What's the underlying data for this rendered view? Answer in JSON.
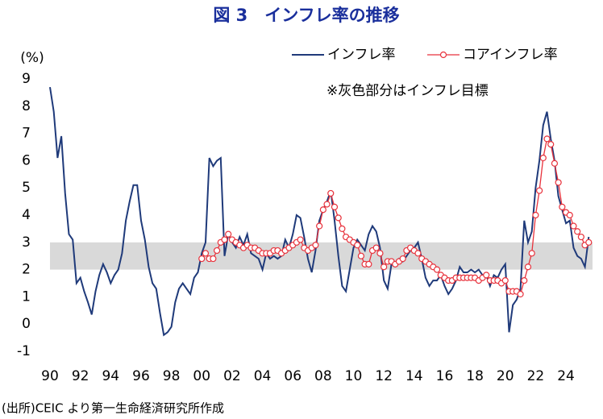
{
  "chart_data": {
    "type": "line",
    "title": "図 3　インフレ率の推移",
    "y_unit": "(%)",
    "annotation": "※灰色部分はインフレ目標",
    "source": "(出所)CEIC より第一生命経済研究所作成",
    "target_band": [
      2,
      3
    ],
    "band_color": "#d9d9d9",
    "xlim": [
      1990,
      2025.75
    ],
    "ylim": [
      -1,
      9
    ],
    "yticks": [
      -1,
      0,
      1,
      2,
      3,
      4,
      5,
      6,
      7,
      8,
      9
    ],
    "xticks": [
      {
        "value": 1990,
        "label": "90"
      },
      {
        "value": 1992,
        "label": "92"
      },
      {
        "value": 1994,
        "label": "94"
      },
      {
        "value": 1996,
        "label": "96"
      },
      {
        "value": 1998,
        "label": "98"
      },
      {
        "value": 2000,
        "label": "00"
      },
      {
        "value": 2002,
        "label": "02"
      },
      {
        "value": 2004,
        "label": "04"
      },
      {
        "value": 2006,
        "label": "06"
      },
      {
        "value": 2008,
        "label": "08"
      },
      {
        "value": 2010,
        "label": "10"
      },
      {
        "value": 2012,
        "label": "12"
      },
      {
        "value": 2014,
        "label": "14"
      },
      {
        "value": 2016,
        "label": "16"
      },
      {
        "value": 2018,
        "label": "18"
      },
      {
        "value": 2020,
        "label": "20"
      },
      {
        "value": 2022,
        "label": "22"
      },
      {
        "value": 2024,
        "label": "24"
      }
    ],
    "series": [
      {
        "name": "インフレ率",
        "color": "#1f3a7a",
        "markers": false,
        "x": [
          1990,
          1990.25,
          1990.5,
          1990.75,
          1991,
          1991.25,
          1991.5,
          1991.75,
          1992,
          1992.25,
          1992.5,
          1992.75,
          1993,
          1993.25,
          1993.5,
          1993.75,
          1994,
          1994.25,
          1994.5,
          1994.75,
          1995,
          1995.25,
          1995.5,
          1995.75,
          1996,
          1996.25,
          1996.5,
          1996.75,
          1997,
          1997.25,
          1997.5,
          1997.75,
          1998,
          1998.25,
          1998.5,
          1998.75,
          1999,
          1999.25,
          1999.5,
          1999.75,
          2000,
          2000.25,
          2000.5,
          2000.75,
          2001,
          2001.25,
          2001.5,
          2001.75,
          2002,
          2002.25,
          2002.5,
          2002.75,
          2003,
          2003.25,
          2003.5,
          2003.75,
          2004,
          2004.25,
          2004.5,
          2004.75,
          2005,
          2005.25,
          2005.5,
          2005.75,
          2006,
          2006.25,
          2006.5,
          2006.75,
          2007,
          2007.25,
          2007.5,
          2007.75,
          2008,
          2008.25,
          2008.5,
          2008.75,
          2009,
          2009.25,
          2009.5,
          2009.75,
          2010,
          2010.25,
          2010.5,
          2010.75,
          2011,
          2011.25,
          2011.5,
          2011.75,
          2012,
          2012.25,
          2012.5,
          2012.75,
          2013,
          2013.25,
          2013.5,
          2013.75,
          2014,
          2014.25,
          2014.5,
          2014.75,
          2015,
          2015.25,
          2015.5,
          2015.75,
          2016,
          2016.25,
          2016.5,
          2016.75,
          2017,
          2017.25,
          2017.5,
          2017.75,
          2018,
          2018.25,
          2018.5,
          2018.75,
          2019,
          2019.25,
          2019.5,
          2019.75,
          2020,
          2020.25,
          2020.5,
          2020.75,
          2021,
          2021.25,
          2021.5,
          2021.75,
          2022,
          2022.25,
          2022.5,
          2022.75,
          2023,
          2023.25,
          2023.5,
          2023.75,
          2024,
          2024.25,
          2024.5,
          2024.75,
          2025,
          2025.25,
          2025.5
        ],
        "values": [
          8.7,
          7.8,
          6.1,
          6.9,
          4.8,
          3.3,
          3.1,
          1.5,
          1.7,
          1.2,
          0.8,
          0.35,
          1.2,
          1.8,
          2.2,
          1.9,
          1.5,
          1.8,
          2.0,
          2.6,
          3.8,
          4.5,
          5.1,
          5.1,
          3.8,
          3.1,
          2.1,
          1.5,
          1.3,
          0.4,
          -0.4,
          -0.3,
          -0.1,
          0.8,
          1.3,
          1.5,
          1.3,
          1.1,
          1.7,
          1.9,
          2.6,
          3.0,
          6.1,
          5.8,
          6.0,
          6.1,
          2.5,
          3.3,
          3.0,
          2.8,
          3.2,
          2.9,
          3.3,
          2.6,
          2.5,
          2.4,
          2.0,
          2.6,
          2.4,
          2.5,
          2.4,
          2.5,
          3.1,
          2.8,
          3.3,
          4.0,
          3.9,
          3.2,
          2.4,
          1.9,
          2.7,
          3.8,
          4.2,
          4.5,
          4.9,
          3.8,
          2.5,
          1.4,
          1.2,
          2.0,
          2.8,
          3.1,
          2.9,
          2.7,
          3.3,
          3.6,
          3.4,
          2.8,
          1.6,
          1.3,
          2.2,
          2.2,
          2.4,
          2.3,
          2.5,
          2.7,
          2.8,
          3.0,
          2.4,
          1.7,
          1.4,
          1.6,
          1.6,
          1.8,
          1.4,
          1.1,
          1.3,
          1.6,
          2.1,
          1.9,
          1.9,
          2.0,
          1.9,
          2.0,
          1.8,
          1.8,
          1.4,
          1.8,
          1.7,
          2.0,
          2.2,
          -0.3,
          0.7,
          0.9,
          1.3,
          3.8,
          3.0,
          3.4,
          5.0,
          6.0,
          7.3,
          7.8,
          6.8,
          6.0,
          4.7,
          4.2,
          3.7,
          3.8,
          2.8,
          2.5,
          2.4,
          2.1,
          3.2
        ]
      },
      {
        "name": "コアインフレ率",
        "color": "#e8323c",
        "markers": true,
        "x": [
          2000,
          2000.25,
          2000.5,
          2000.75,
          2001,
          2001.25,
          2001.5,
          2001.75,
          2002,
          2002.25,
          2002.5,
          2002.75,
          2003,
          2003.25,
          2003.5,
          2003.75,
          2004,
          2004.25,
          2004.5,
          2004.75,
          2005,
          2005.25,
          2005.5,
          2005.75,
          2006,
          2006.25,
          2006.5,
          2006.75,
          2007,
          2007.25,
          2007.5,
          2007.75,
          2008,
          2008.25,
          2008.5,
          2008.75,
          2009,
          2009.25,
          2009.5,
          2009.75,
          2010,
          2010.25,
          2010.5,
          2010.75,
          2011,
          2011.25,
          2011.5,
          2011.75,
          2012,
          2012.25,
          2012.5,
          2012.75,
          2013,
          2013.25,
          2013.5,
          2013.75,
          2014,
          2014.25,
          2014.5,
          2014.75,
          2015,
          2015.25,
          2015.5,
          2015.75,
          2016,
          2016.25,
          2016.5,
          2016.75,
          2017,
          2017.25,
          2017.5,
          2017.75,
          2018,
          2018.25,
          2018.5,
          2018.75,
          2019,
          2019.25,
          2019.5,
          2019.75,
          2020,
          2020.25,
          2020.5,
          2020.75,
          2021,
          2021.25,
          2021.5,
          2021.75,
          2022,
          2022.25,
          2022.5,
          2022.75,
          2023,
          2023.25,
          2023.5,
          2023.75,
          2024,
          2024.25,
          2024.5,
          2024.75,
          2025,
          2025.25,
          2025.5
        ],
        "values": [
          2.4,
          2.6,
          2.4,
          2.4,
          2.7,
          3.0,
          3.1,
          3.3,
          3.1,
          3.0,
          2.9,
          2.8,
          2.9,
          2.8,
          2.8,
          2.7,
          2.6,
          2.6,
          2.6,
          2.7,
          2.7,
          2.6,
          2.7,
          2.8,
          2.9,
          3.0,
          3.1,
          2.8,
          2.7,
          2.8,
          2.9,
          3.6,
          4.2,
          4.4,
          4.8,
          4.3,
          3.9,
          3.5,
          3.2,
          3.1,
          3.0,
          2.9,
          2.5,
          2.2,
          2.2,
          2.7,
          2.8,
          2.6,
          2.1,
          2.3,
          2.3,
          2.2,
          2.3,
          2.4,
          2.7,
          2.8,
          2.7,
          2.6,
          2.4,
          2.3,
          2.2,
          2.1,
          2.0,
          1.8,
          1.7,
          1.6,
          1.6,
          1.7,
          1.7,
          1.7,
          1.7,
          1.7,
          1.7,
          1.6,
          1.7,
          1.8,
          1.6,
          1.6,
          1.6,
          1.5,
          1.6,
          1.2,
          1.2,
          1.2,
          1.1,
          1.6,
          2.1,
          2.6,
          4.0,
          4.9,
          6.1,
          6.8,
          6.6,
          5.9,
          5.2,
          4.3,
          4.1,
          4.0,
          3.6,
          3.4,
          3.2,
          2.9,
          3.0
        ]
      }
    ]
  }
}
